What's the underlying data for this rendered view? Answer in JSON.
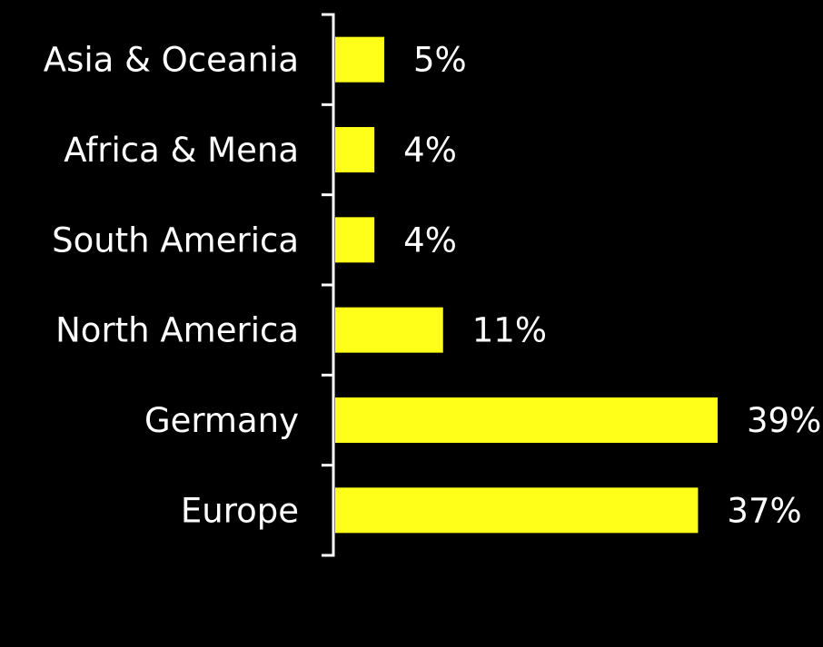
{
  "chart_data": {
    "type": "bar",
    "orientation": "horizontal",
    "categories": [
      "Asia & Oceania",
      "Africa & Mena",
      "South America",
      "North America",
      "Germany",
      "Europe"
    ],
    "values": [
      5,
      4,
      4,
      11,
      39,
      37
    ],
    "value_labels": [
      "5%",
      "4%",
      "4%",
      "11%",
      "39%",
      "37%"
    ],
    "unit": "%",
    "xlim": [
      0,
      39
    ],
    "grid": false,
    "legend": "none",
    "colors": {
      "background": "#000000",
      "bar": "#ffff19",
      "text": "#ffffff",
      "axis": "#ffffff"
    }
  }
}
